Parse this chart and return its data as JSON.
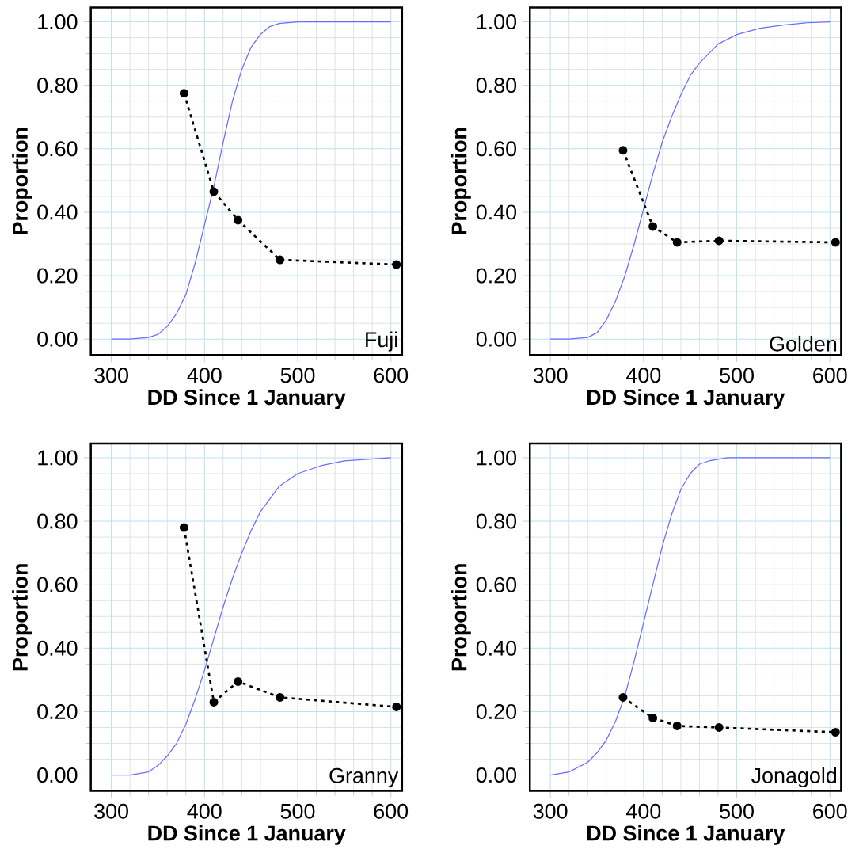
{
  "chart_data": [
    {
      "type": "line",
      "xlabel": "DD Since 1 January",
      "ylabel": "Proportion",
      "annotations": [
        "Fuji"
      ],
      "xlim": [
        278,
        612
      ],
      "ylim": [
        -0.05,
        1.045
      ],
      "xticks": [
        300,
        400,
        500,
        600
      ],
      "yticks": [
        {
          "value": 0,
          "label": "0.00"
        },
        {
          "value": 0.2,
          "label": "0.20"
        },
        {
          "value": 0.4,
          "label": "0.40"
        },
        {
          "value": 0.6,
          "label": "0.60"
        },
        {
          "value": 0.8,
          "label": "0.80"
        },
        {
          "value": 1,
          "label": "1.00"
        }
      ],
      "grid": true,
      "series": [
        {
          "color": "#6b6bff",
          "marker": "none",
          "line_style": "solid",
          "x": [
            300,
            320,
            340,
            350,
            360,
            370,
            380,
            390,
            400,
            410,
            420,
            430,
            440,
            450,
            460,
            470,
            480,
            500,
            600
          ],
          "values": [
            0,
            0,
            0.005,
            0.015,
            0.04,
            0.08,
            0.14,
            0.24,
            0.36,
            0.48,
            0.62,
            0.75,
            0.85,
            0.92,
            0.96,
            0.985,
            0.995,
            1,
            1
          ]
        },
        {
          "color": "#000000",
          "marker": "circle",
          "line_style": "dotted",
          "x": [
            378,
            410,
            436,
            481,
            606
          ],
          "values": [
            0.775,
            0.465,
            0.375,
            0.25,
            0.235
          ]
        }
      ]
    },
    {
      "type": "line",
      "xlabel": "DD Since 1 January",
      "ylabel": "Proportion",
      "annotations": [
        "Golden"
      ],
      "xlim": [
        278,
        612
      ],
      "ylim": [
        -0.05,
        1.045
      ],
      "xticks": [
        300,
        400,
        500,
        600
      ],
      "yticks": [
        {
          "value": 0,
          "label": "0.00"
        },
        {
          "value": 0.2,
          "label": "0.20"
        },
        {
          "value": 0.4,
          "label": "0.40"
        },
        {
          "value": 0.6,
          "label": "0.60"
        },
        {
          "value": 0.8,
          "label": "0.80"
        },
        {
          "value": 1,
          "label": "1.00"
        }
      ],
      "grid": true,
      "series": [
        {
          "color": "#6b6bff",
          "marker": "none",
          "line_style": "solid",
          "x": [
            300,
            320,
            340,
            350,
            360,
            370,
            380,
            390,
            400,
            410,
            420,
            430,
            440,
            450,
            460,
            480,
            500,
            525,
            550,
            575,
            600
          ],
          "values": [
            0,
            0,
            0.005,
            0.02,
            0.06,
            0.12,
            0.2,
            0.3,
            0.41,
            0.52,
            0.62,
            0.7,
            0.77,
            0.83,
            0.87,
            0.93,
            0.96,
            0.98,
            0.99,
            0.997,
            1
          ]
        },
        {
          "color": "#000000",
          "marker": "circle",
          "line_style": "dotted",
          "x": [
            378,
            410,
            436,
            481,
            606
          ],
          "values": [
            0.595,
            0.355,
            0.305,
            0.31,
            0.305
          ]
        }
      ]
    },
    {
      "type": "line",
      "xlabel": "DD Since 1 January",
      "ylabel": "Proportion",
      "annotations": [
        "Granny"
      ],
      "xlim": [
        278,
        612
      ],
      "ylim": [
        -0.05,
        1.045
      ],
      "xticks": [
        300,
        400,
        500,
        600
      ],
      "yticks": [
        {
          "value": 0,
          "label": "0.00"
        },
        {
          "value": 0.2,
          "label": "0.20"
        },
        {
          "value": 0.4,
          "label": "0.40"
        },
        {
          "value": 0.6,
          "label": "0.60"
        },
        {
          "value": 0.8,
          "label": "0.80"
        },
        {
          "value": 1,
          "label": "1.00"
        }
      ],
      "grid": true,
      "series": [
        {
          "color": "#6b6bff",
          "marker": "none",
          "line_style": "solid",
          "x": [
            300,
            320,
            340,
            350,
            360,
            370,
            380,
            390,
            400,
            410,
            420,
            430,
            440,
            450,
            460,
            480,
            500,
            525,
            550,
            575,
            600
          ],
          "values": [
            0,
            0,
            0.01,
            0.03,
            0.06,
            0.1,
            0.16,
            0.24,
            0.33,
            0.43,
            0.53,
            0.62,
            0.7,
            0.77,
            0.83,
            0.91,
            0.95,
            0.975,
            0.99,
            0.995,
            1
          ]
        },
        {
          "color": "#000000",
          "marker": "circle",
          "line_style": "dotted",
          "x": [
            378,
            410,
            436,
            481,
            606
          ],
          "values": [
            0.78,
            0.23,
            0.295,
            0.245,
            0.215
          ]
        }
      ]
    },
    {
      "type": "line",
      "xlabel": "DD Since 1 January",
      "ylabel": "Proportion",
      "annotations": [
        "Jonagold"
      ],
      "xlim": [
        278,
        612
      ],
      "ylim": [
        -0.05,
        1.045
      ],
      "xticks": [
        300,
        400,
        500,
        600
      ],
      "yticks": [
        {
          "value": 0,
          "label": "0.00"
        },
        {
          "value": 0.2,
          "label": "0.20"
        },
        {
          "value": 0.4,
          "label": "0.40"
        },
        {
          "value": 0.6,
          "label": "0.60"
        },
        {
          "value": 0.8,
          "label": "0.80"
        },
        {
          "value": 1,
          "label": "1.00"
        }
      ],
      "grid": true,
      "series": [
        {
          "color": "#6b6bff",
          "marker": "none",
          "line_style": "solid",
          "x": [
            300,
            320,
            340,
            350,
            360,
            370,
            380,
            390,
            400,
            410,
            420,
            430,
            440,
            450,
            460,
            470,
            490,
            600
          ],
          "values": [
            0,
            0.01,
            0.04,
            0.07,
            0.11,
            0.17,
            0.25,
            0.36,
            0.48,
            0.6,
            0.72,
            0.82,
            0.9,
            0.95,
            0.98,
            0.99,
            1,
            1
          ]
        },
        {
          "color": "#000000",
          "marker": "circle",
          "line_style": "dotted",
          "x": [
            378,
            410,
            436,
            481,
            606
          ],
          "values": [
            0.245,
            0.18,
            0.155,
            0.15,
            0.135
          ]
        }
      ]
    }
  ]
}
